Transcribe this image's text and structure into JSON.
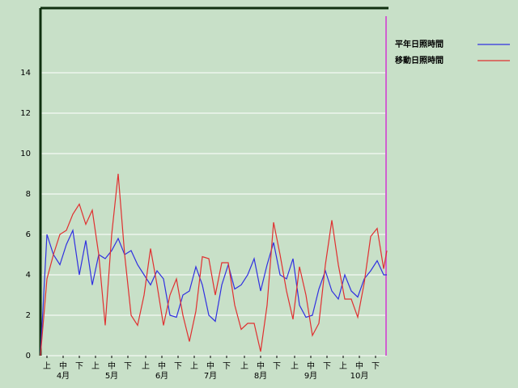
{
  "chart_data": {
    "type": "line",
    "x": [
      0,
      4,
      8,
      12,
      16,
      20,
      24,
      28,
      32,
      36,
      40,
      44,
      48,
      52,
      56,
      60,
      64,
      68,
      72,
      76,
      80,
      84,
      88,
      92,
      96,
      100,
      104,
      108,
      112,
      116,
      120,
      124,
      128,
      132,
      136,
      140,
      144,
      148,
      152,
      156,
      160,
      164,
      168,
      172,
      176,
      180,
      184,
      188,
      192,
      196,
      200,
      204,
      208,
      212,
      214
    ],
    "series": [
      {
        "name": "平年日照時間",
        "color": "#3030e0",
        "values": [
          0,
          6.0,
          5.0,
          4.5,
          5.5,
          6.2,
          4.0,
          5.7,
          3.5,
          5.0,
          4.8,
          5.2,
          5.8,
          5.0,
          5.2,
          4.5,
          4.0,
          3.5,
          4.2,
          3.8,
          2.0,
          1.9,
          3.0,
          3.2,
          4.4,
          3.5,
          2.0,
          1.7,
          3.5,
          4.5,
          3.3,
          3.5,
          4.0,
          4.8,
          3.2,
          4.5,
          5.6,
          4.0,
          3.8,
          4.8,
          2.5,
          1.9,
          2.0,
          3.3,
          4.2,
          3.2,
          2.8,
          4.0,
          3.2,
          2.9,
          3.8,
          4.2,
          4.7,
          4.0,
          4.0
        ]
      },
      {
        "name": "移動日照時間",
        "color": "#e03030",
        "values": [
          0,
          3.8,
          5.0,
          6.0,
          6.2,
          7.0,
          7.5,
          6.5,
          7.2,
          5.0,
          1.5,
          6.0,
          9.0,
          5.0,
          2.0,
          1.5,
          3.0,
          5.3,
          3.5,
          1.5,
          3.0,
          3.8,
          2.0,
          0.7,
          2.2,
          4.9,
          4.8,
          3.0,
          4.6,
          4.6,
          2.5,
          1.3,
          1.6,
          1.6,
          0.2,
          2.5,
          6.6,
          5.0,
          3.2,
          1.8,
          4.4,
          3.0,
          1.0,
          1.6,
          4.5,
          6.7,
          4.5,
          2.8,
          2.8,
          1.9,
          3.6,
          5.9,
          6.3,
          4.3,
          5.2
        ]
      }
    ],
    "xlim": [
      0,
      214
    ],
    "xticks": [
      {
        "value": 4,
        "label": "上"
      },
      {
        "value": 14,
        "label": "中"
      },
      {
        "value": 24,
        "label": "下"
      },
      {
        "value": 34,
        "label": "上"
      },
      {
        "value": 44,
        "label": "中"
      },
      {
        "value": 54,
        "label": "下"
      },
      {
        "value": 65,
        "label": "上"
      },
      {
        "value": 75,
        "label": "中"
      },
      {
        "value": 85,
        "label": "下"
      },
      {
        "value": 95,
        "label": "上"
      },
      {
        "value": 105,
        "label": "中"
      },
      {
        "value": 115,
        "label": "下"
      },
      {
        "value": 126,
        "label": "上"
      },
      {
        "value": 136,
        "label": "中"
      },
      {
        "value": 146,
        "label": "下"
      },
      {
        "value": 157,
        "label": "上"
      },
      {
        "value": 167,
        "label": "中"
      },
      {
        "value": 177,
        "label": "下"
      },
      {
        "value": 187,
        "label": "上"
      },
      {
        "value": 197,
        "label": "中"
      },
      {
        "value": 207,
        "label": "下"
      }
    ],
    "month_ticks": [
      {
        "value": 14,
        "label": "4月"
      },
      {
        "value": 44,
        "label": "5月"
      },
      {
        "value": 75,
        "label": "6月"
      },
      {
        "value": 105,
        "label": "7月"
      },
      {
        "value": 136,
        "label": "8月"
      },
      {
        "value": 167,
        "label": "9月"
      },
      {
        "value": 197,
        "label": "10月"
      }
    ],
    "ylim": [
      0,
      17.2
    ],
    "yticks": [
      0,
      2,
      4,
      6,
      8,
      10,
      12,
      14
    ],
    "grid": true,
    "legend": "right"
  }
}
